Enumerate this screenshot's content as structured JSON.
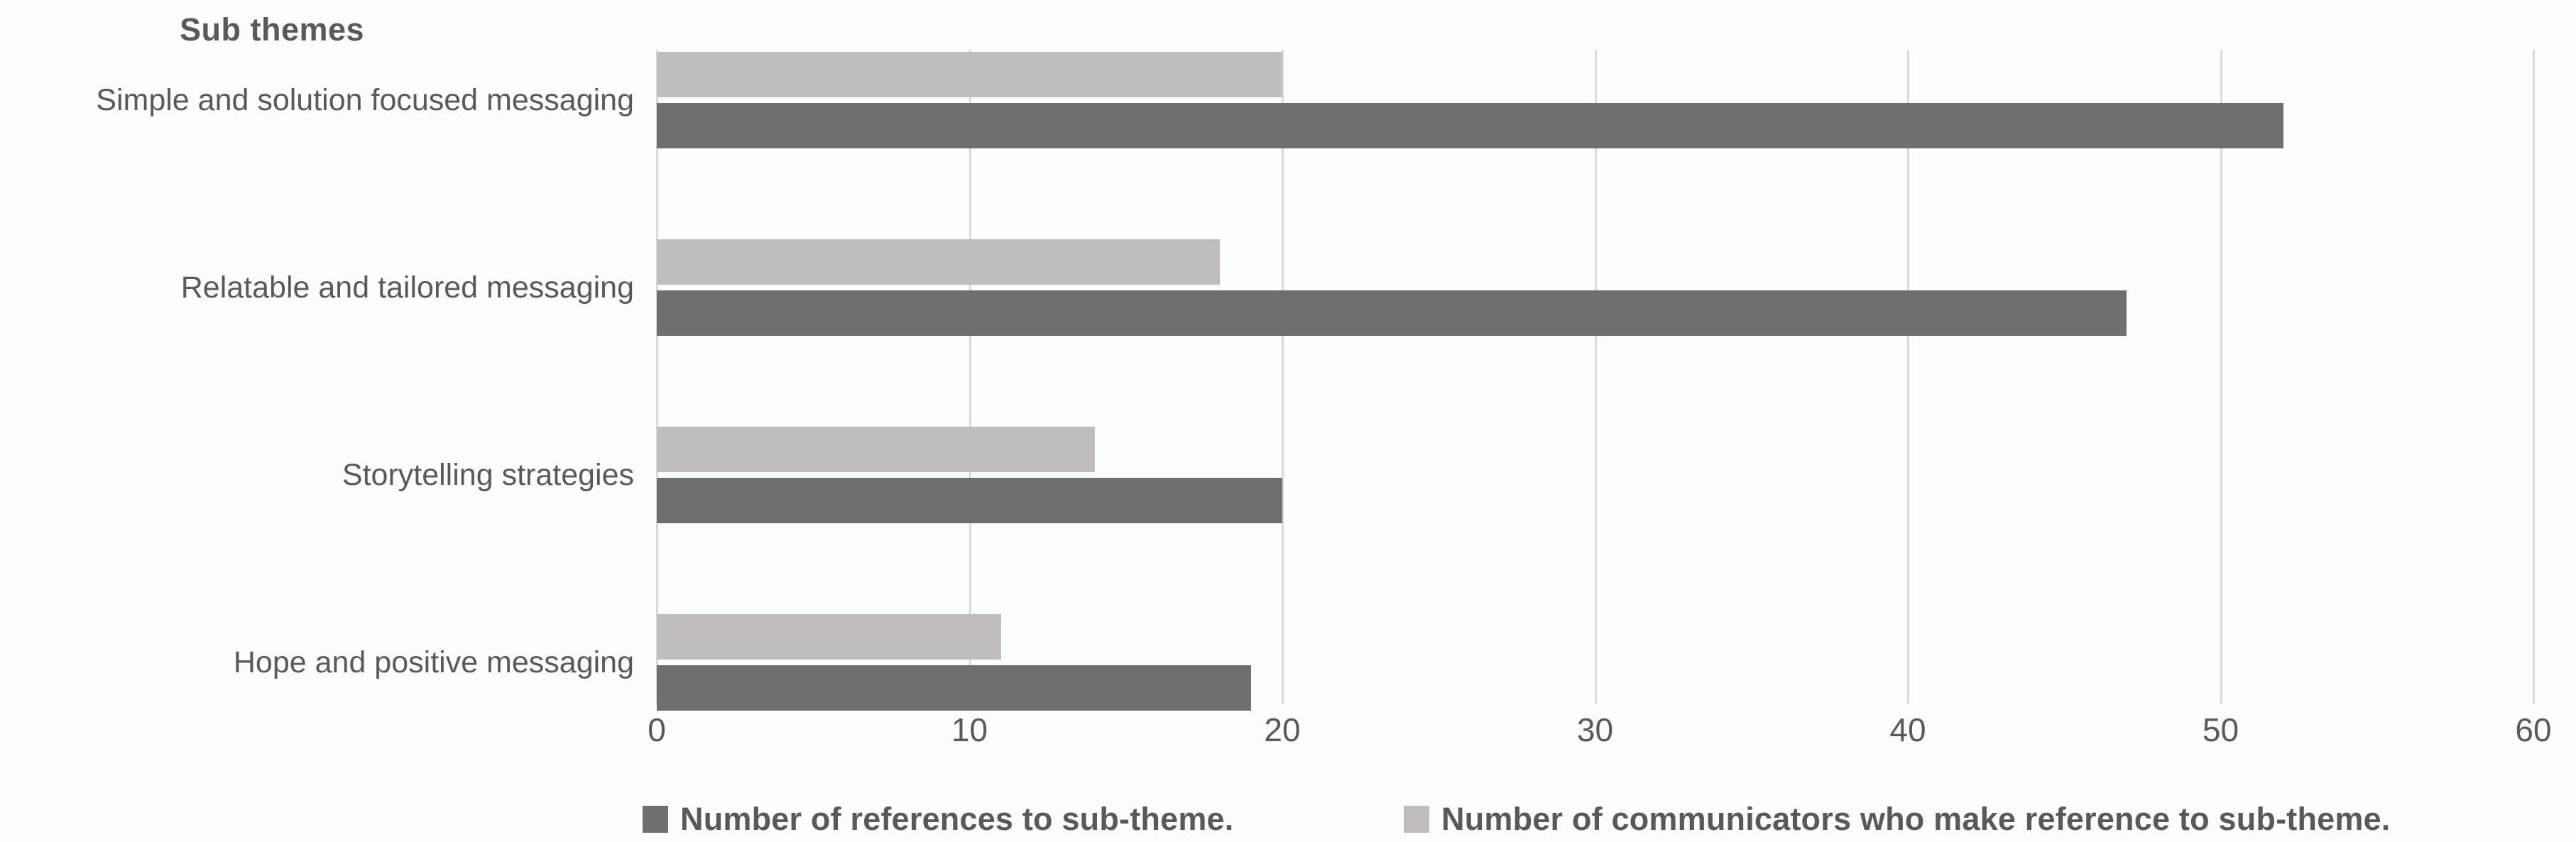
{
  "page": {
    "background": "#fdfdfc",
    "text_color": "#595959",
    "gridline_color": "#d9d9d9"
  },
  "chart_data": {
    "type": "bar",
    "orientation": "horizontal",
    "title": "Sub themes",
    "categories": [
      "Simple and solution focused messaging",
      "Relatable and tailored messaging",
      "Storytelling strategies",
      "Hope and positive messaging"
    ],
    "series": [
      {
        "name": "Number of references to sub-theme.",
        "color": "#6f6f6f",
        "values": [
          52,
          47,
          20,
          19
        ]
      },
      {
        "name": "Number of communicators who make reference to sub-theme.",
        "color": "#c2bdbd",
        "values": [
          20,
          18,
          14,
          11
        ]
      }
    ],
    "group_layout": "communicators bar on top, references bar below, per category",
    "xlim": [
      0,
      60
    ],
    "x_ticks": [
      0,
      10,
      20,
      30,
      40,
      50,
      60
    ],
    "grid": "vertical gridlines only",
    "legend_position": "bottom",
    "axis_line": "none"
  }
}
